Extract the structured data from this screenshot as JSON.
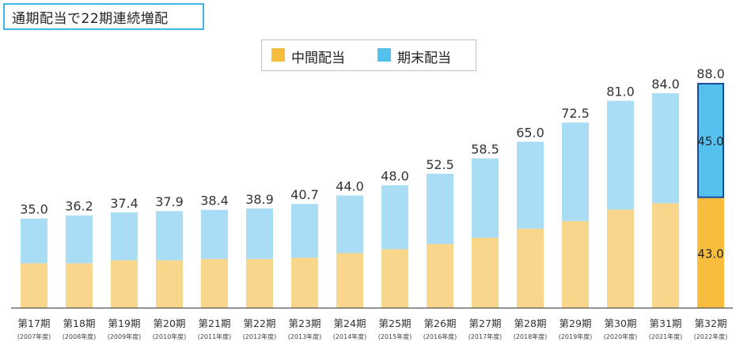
{
  "title": "通期配当で22期連続増配",
  "colors": {
    "interim": "#f8d78c",
    "final": "#a9dcf5",
    "interim_highlight": "#f8bd3c",
    "final_highlight": "#55c1ef",
    "highlight_border": "#1a4c96",
    "title_border": "#3fb6e6"
  },
  "chart_data": {
    "type": "bar",
    "stacked": true,
    "legend_position": "top-center",
    "grid": false,
    "categories": [
      "第17期",
      "第18期",
      "第19期",
      "第20期",
      "第21期",
      "第22期",
      "第23期",
      "第24期",
      "第25期",
      "第26期",
      "第27期",
      "第28期",
      "第29期",
      "第30期",
      "第31期",
      "第32期"
    ],
    "sublabels": [
      "(2007年度)",
      "(2008年度)",
      "(2009年度)",
      "(2010年度)",
      "(2011年度)",
      "(2012年度)",
      "(2013年度)",
      "(2014年度)",
      "(2015年度)",
      "(2016年度)",
      "(2017年度)",
      "(2018年度)",
      "(2019年度)",
      "(2020年度)",
      "(2021年度)",
      "(2022年度)"
    ],
    "totals": [
      35.0,
      36.2,
      37.4,
      37.9,
      38.4,
      38.9,
      40.7,
      44.0,
      48.0,
      52.5,
      58.5,
      65.0,
      72.5,
      81.0,
      84.0,
      88.0
    ],
    "total_labels": [
      "35.0",
      "36.2",
      "37.4",
      "37.9",
      "38.4",
      "38.9",
      "40.7",
      "44.0",
      "48.0",
      "52.5",
      "58.5",
      "65.0",
      "72.5",
      "81.0",
      "84.0",
      "88.0"
    ],
    "series": [
      {
        "name": "中間配当",
        "values": [
          17.5,
          17.5,
          18.7,
          18.7,
          19.2,
          19.2,
          19.7,
          21.5,
          23.0,
          25.0,
          27.5,
          31.0,
          34.0,
          38.5,
          41.0,
          43.0
        ]
      },
      {
        "name": "期末配当",
        "values": [
          17.5,
          18.7,
          18.7,
          19.2,
          19.2,
          19.7,
          21.0,
          22.5,
          25.0,
          27.5,
          31.0,
          34.0,
          38.5,
          42.5,
          43.0,
          45.0
        ]
      }
    ],
    "highlight_index": 15,
    "highlight_labels": {
      "interim": "43.0",
      "final": "45.0"
    },
    "ylim": [
      0,
      92
    ]
  }
}
